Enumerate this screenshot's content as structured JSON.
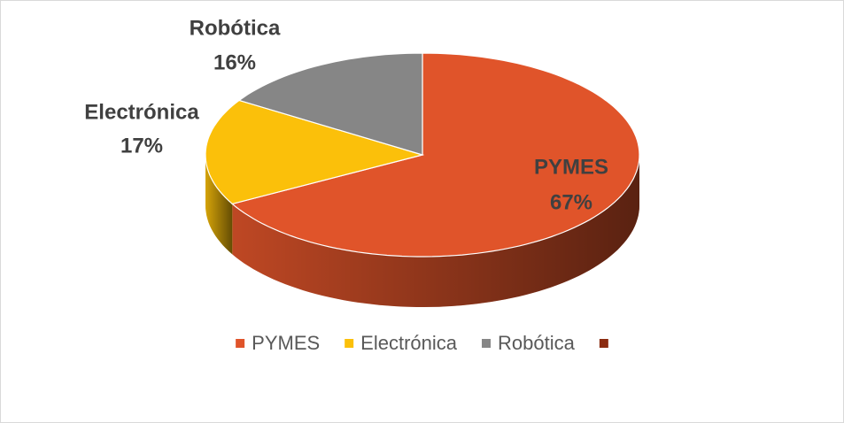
{
  "chart_data": {
    "type": "pie3d",
    "categories": [
      "PYMES",
      "Electrónica",
      "Robótica",
      null
    ],
    "values": [
      67,
      17,
      16,
      null
    ],
    "value_labels": [
      "67%",
      "17%",
      "16%",
      null
    ],
    "colors": [
      "#e0542a",
      "#fbc00a",
      "#868686",
      "#8b2b10"
    ],
    "legend": "bottom"
  }
}
